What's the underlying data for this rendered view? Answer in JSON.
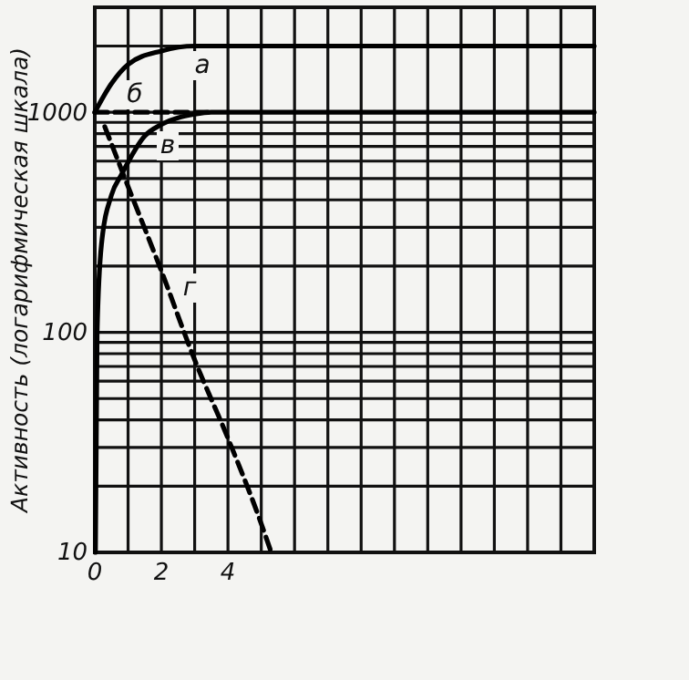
{
  "chart_data": {
    "type": "line",
    "ylabel": "Активность (логарифмическая шкала)",
    "log": true,
    "grid": true,
    "line_style": "solid",
    "marker": "none",
    "xlim": [
      0,
      15
    ],
    "ylim": [
      10,
      3000
    ],
    "xticks": [
      0,
      {
        "value": 1,
        "label": null
      },
      2,
      {
        "value": 3,
        "label": null
      },
      4,
      {
        "value": 5,
        "label": null
      },
      {
        "value": 6,
        "label": null
      },
      {
        "value": 7,
        "label": null
      },
      {
        "value": 8,
        "label": null
      },
      {
        "value": 9,
        "label": null
      },
      {
        "value": 10,
        "label": null
      },
      {
        "value": 11,
        "label": null
      },
      {
        "value": 12,
        "label": null
      },
      {
        "value": 13,
        "label": null
      },
      {
        "value": 14,
        "label": null
      },
      {
        "value": 15,
        "label": null
      }
    ],
    "yticks": [
      10,
      {
        "value": 20,
        "label": null
      },
      {
        "value": 30,
        "label": null
      },
      {
        "value": 40,
        "label": null
      },
      {
        "value": 50,
        "label": null
      },
      {
        "value": 60,
        "label": null
      },
      {
        "value": 70,
        "label": null
      },
      {
        "value": 80,
        "label": null
      },
      {
        "value": 90,
        "label": null
      },
      100,
      {
        "value": 200,
        "label": null
      },
      {
        "value": 300,
        "label": null
      },
      {
        "value": 400,
        "label": null
      },
      {
        "value": 500,
        "label": null
      },
      {
        "value": 600,
        "label": null
      },
      {
        "value": 700,
        "label": null
      },
      {
        "value": 800,
        "label": null
      },
      {
        "value": 900,
        "label": null
      },
      1000,
      {
        "value": 2000,
        "label": null
      },
      {
        "value": 3000,
        "label": null
      }
    ],
    "series": [
      {
        "name": "а",
        "color": "#000000",
        "x": [
          0,
          0.5,
          1,
          2,
          3,
          15
        ],
        "values": [
          1000,
          1350,
          1650,
          1900,
          2000,
          2000
        ]
      },
      {
        "name": "б",
        "color": "#000000",
        "line_style": "dashed",
        "x": [
          0,
          3.5
        ],
        "values": [
          1000,
          1000
        ]
      },
      {
        "name": "в",
        "color": "#000000",
        "x": [
          0.02,
          0.07,
          0.2,
          0.5,
          0.8,
          1.5,
          2,
          3,
          3.5,
          15
        ],
        "values": [
          10,
          100,
          250,
          420,
          520,
          780,
          880,
          980,
          1000,
          1000
        ]
      },
      {
        "name": "г",
        "color": "#000000",
        "line_style": "dashed",
        "x": [
          0.3,
          1,
          2,
          3,
          4,
          5,
          5.3
        ],
        "values": [
          860,
          460,
          190,
          75,
          33,
          13.5,
          10
        ]
      }
    ]
  }
}
